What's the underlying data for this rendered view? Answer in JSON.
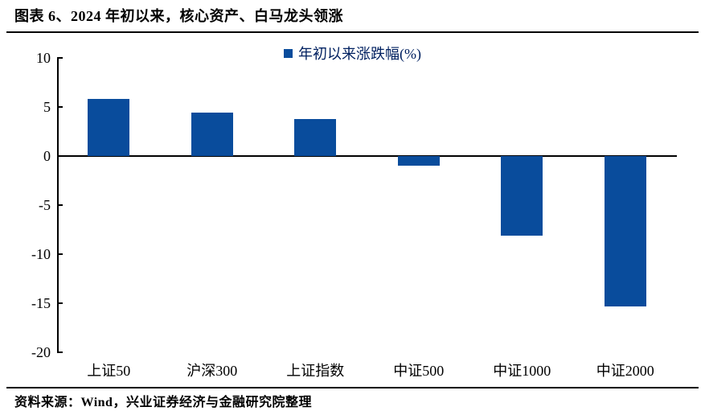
{
  "header": {
    "title": "图表 6、2024 年初以来，核心资产、白马龙头领涨"
  },
  "footer": {
    "source": "资料来源：Wind，兴业证券经济与金融研究院整理"
  },
  "chart_data": {
    "type": "bar",
    "legend": "年初以来涨跌幅(%)",
    "legend_position": "top-center",
    "categories": [
      "上证50",
      "沪深300",
      "上证指数",
      "中证500",
      "中证1000",
      "中证2000"
    ],
    "values": [
      5.8,
      4.4,
      3.8,
      -1.0,
      -8.1,
      -15.3
    ],
    "ylim": [
      -20,
      10
    ],
    "yticks": [
      10,
      5,
      0,
      -5,
      -10,
      -15,
      -20
    ],
    "grid": false,
    "bar_color": "#094C9C",
    "legend_text_color": "#002060",
    "axis_color": "#000000"
  }
}
